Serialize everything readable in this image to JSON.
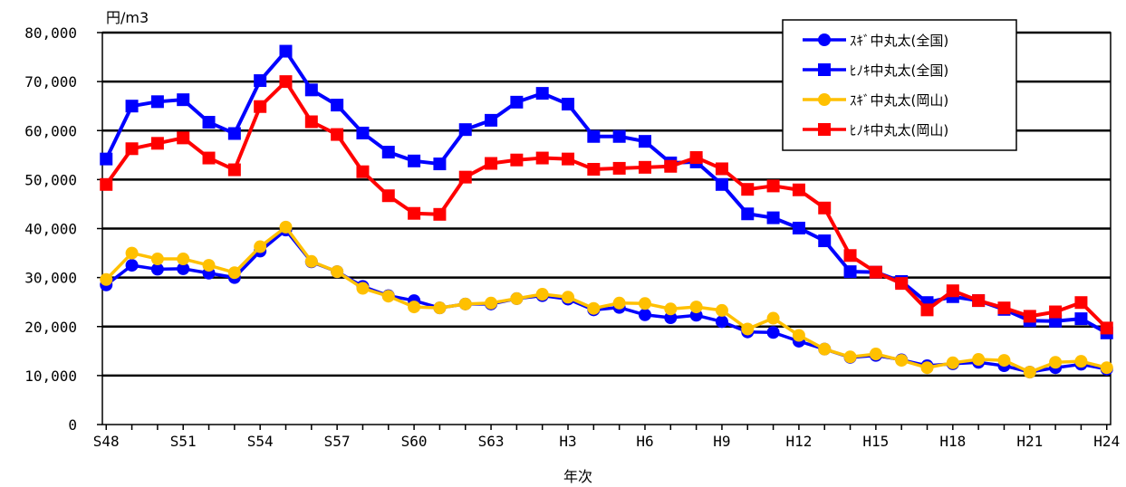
{
  "chart_data": {
    "type": "line",
    "title": "",
    "ylabel": "円/m3",
    "xlabel": "年次",
    "ylim": [
      0,
      80000
    ],
    "yticks": [
      0,
      10000,
      20000,
      30000,
      40000,
      50000,
      60000,
      70000,
      80000
    ],
    "ytick_labels": [
      "0",
      "10,000",
      "20,000",
      "30,000",
      "40,000",
      "50,000",
      "60,000",
      "70,000",
      "80,000"
    ],
    "grid": true,
    "legend_position": "top-right",
    "x": [
      "S48",
      "S49",
      "S50",
      "S51",
      "S52",
      "S53",
      "S54",
      "S55",
      "S56",
      "S57",
      "S58",
      "S59",
      "S60",
      "S61",
      "S62",
      "S63",
      "H1",
      "H2",
      "H3",
      "H4",
      "H5",
      "H6",
      "H7",
      "H8",
      "H9",
      "H10",
      "H11",
      "H12",
      "H13",
      "H14",
      "H15",
      "H16",
      "H17",
      "H18",
      "H19",
      "H20",
      "H21",
      "H22",
      "H23",
      "H24"
    ],
    "xtick_labels": [
      "S48",
      "S51",
      "S54",
      "S57",
      "S60",
      "S63",
      "H3",
      "H6",
      "H9",
      "H12",
      "H15",
      "H18",
      "H21",
      "H24"
    ],
    "series": [
      {
        "name": "ｽｷﾞ中丸太(全国)",
        "color": "#0000ff",
        "marker": "circle",
        "values": [
          28500,
          32500,
          31700,
          31800,
          30900,
          30000,
          35400,
          39700,
          33200,
          31200,
          28200,
          26300,
          25300,
          23800,
          24600,
          24600,
          25700,
          26300,
          25600,
          23400,
          23900,
          22400,
          21800,
          22300,
          21000,
          18900,
          18800,
          17000,
          15400,
          13700,
          14100,
          13200,
          12000,
          12400,
          12700,
          12000,
          10700,
          11600,
          12300,
          11300
        ]
      },
      {
        "name": "ﾋﾉｷ中丸太(全国)",
        "color": "#0000ff",
        "marker": "square",
        "values": [
          54200,
          65000,
          65900,
          66300,
          61700,
          59400,
          70200,
          76200,
          68300,
          65200,
          59500,
          55600,
          53800,
          53200,
          60200,
          62100,
          65800,
          67600,
          65400,
          58800,
          58800,
          57800,
          53400,
          53600,
          49000,
          43000,
          42200,
          40100,
          37500,
          31200,
          31100,
          29200,
          24900,
          26100,
          25300,
          23500,
          21200,
          21100,
          21600,
          18700
        ]
      },
      {
        "name": "ｽｷﾞ中丸太(岡山)",
        "color": "#ffc000",
        "marker": "circle",
        "values": [
          29600,
          35000,
          33800,
          33800,
          32500,
          31000,
          36300,
          40300,
          33300,
          31200,
          27800,
          26200,
          24000,
          23800,
          24600,
          24800,
          25700,
          26600,
          26000,
          23700,
          24800,
          24700,
          23600,
          24000,
          23300,
          19500,
          21700,
          18200,
          15400,
          13800,
          14400,
          13100,
          11600,
          12600,
          13300,
          13100,
          10700,
          12700,
          12900,
          11600
        ]
      },
      {
        "name": "ﾋﾉｷ中丸太(岡山)",
        "color": "#ff0000",
        "marker": "square",
        "values": [
          49000,
          56300,
          57400,
          58500,
          54400,
          52000,
          64900,
          70000,
          61800,
          59200,
          51600,
          46700,
          43100,
          42900,
          50500,
          53300,
          54000,
          54400,
          54200,
          52100,
          52300,
          52500,
          52700,
          54500,
          52200,
          48000,
          48700,
          47900,
          44200,
          34500,
          31100,
          28800,
          23400,
          27300,
          25300,
          23800,
          22100,
          23000,
          24900,
          19700
        ]
      }
    ]
  }
}
